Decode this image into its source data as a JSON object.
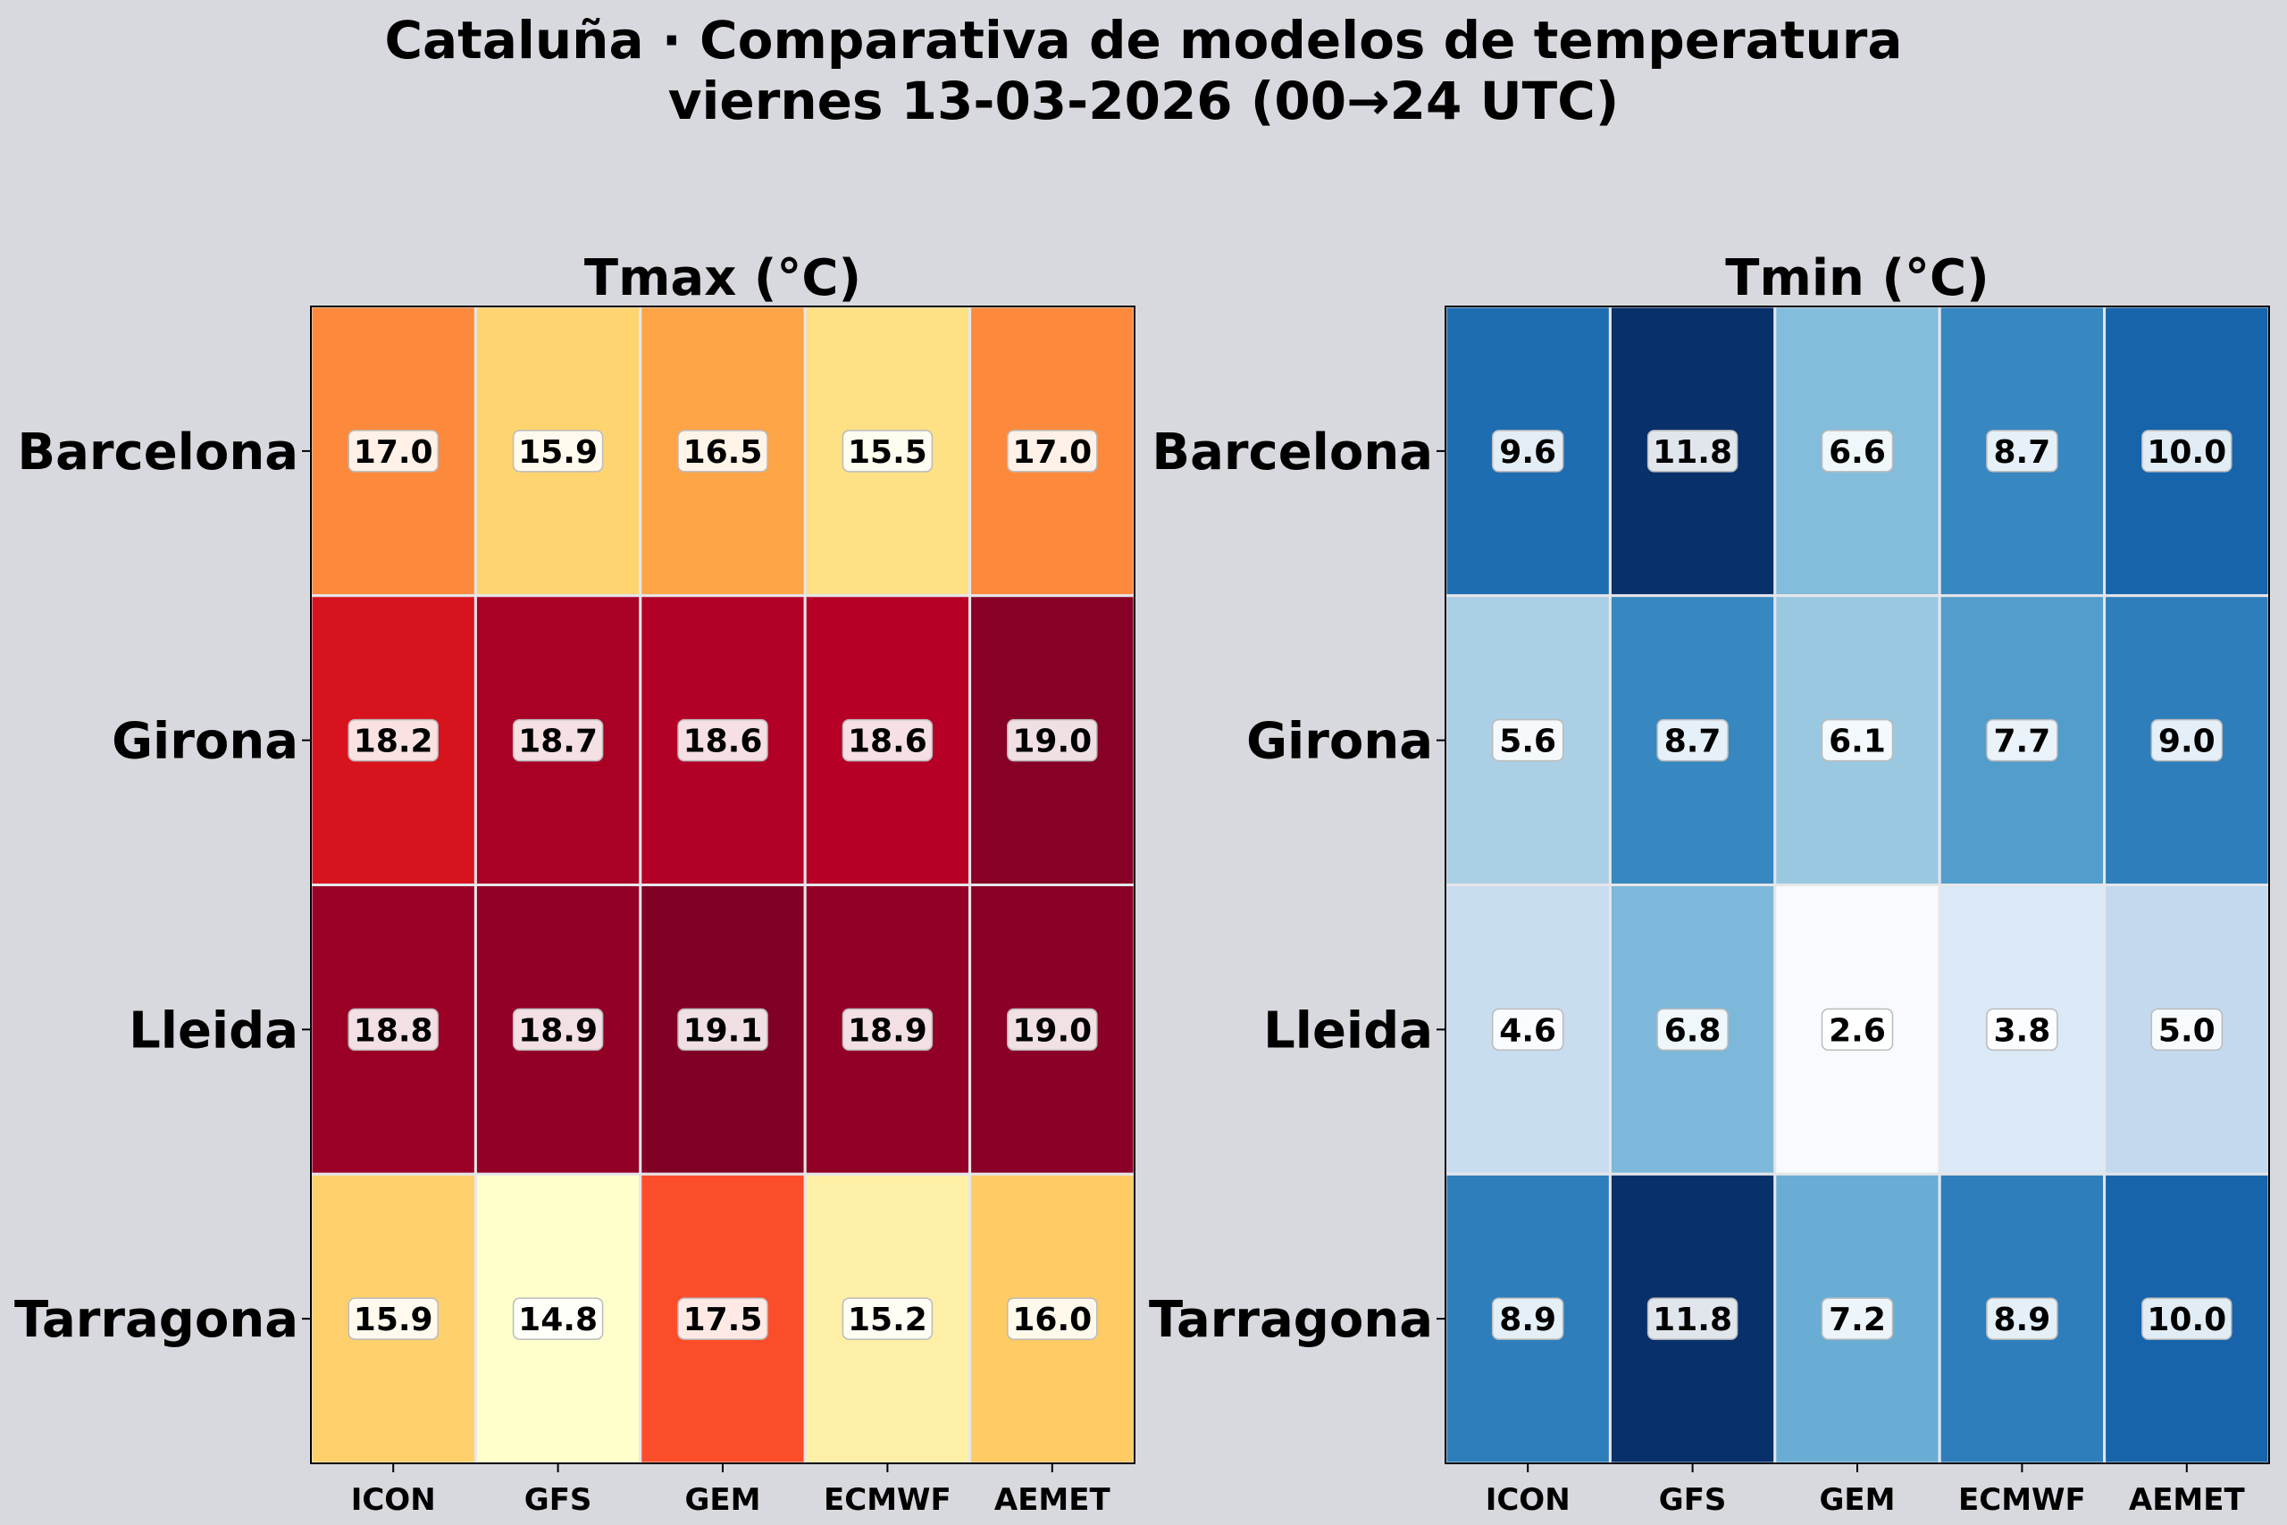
{
  "title_line1": "Cataluña · Comparativa de modelos de temperatura",
  "title_line2": "viernes 13-03-2026 (00→24 UTC)",
  "colors": {
    "background": "#d8d9de",
    "cell_border": "#e6e6ea",
    "label_box_fill": "#ffffff",
    "text": "#000000"
  },
  "chart_data": [
    {
      "type": "heatmap",
      "title": "Tmax (°C)",
      "colormap": "YlOrRd",
      "rows": [
        "Barcelona",
        "Girona",
        "Lleida",
        "Tarragona"
      ],
      "columns": [
        "ICON",
        "GFS",
        "GEM",
        "ECMWF",
        "AEMET"
      ],
      "values": [
        [
          17.0,
          15.9,
          16.5,
          15.5,
          17.0
        ],
        [
          18.2,
          18.7,
          18.6,
          18.6,
          19.0
        ],
        [
          18.8,
          18.9,
          19.1,
          18.9,
          19.0
        ],
        [
          15.9,
          14.8,
          17.5,
          15.2,
          16.0
        ]
      ],
      "value_labels": [
        [
          "17.0",
          "15.9",
          "16.5",
          "15.5",
          "17.0"
        ],
        [
          "18.2",
          "18.7",
          "18.6",
          "18.6",
          "19.0"
        ],
        [
          "18.8",
          "18.9",
          "19.1",
          "18.9",
          "19.0"
        ],
        [
          "15.9",
          "14.8",
          "17.5",
          "15.2",
          "16.0"
        ]
      ],
      "cell_colors": [
        [
          "#fd8a3c",
          "#fed471",
          "#fda447",
          "#fee085",
          "#fd8a3c"
        ],
        [
          "#d7141e",
          "#a90026",
          "#b30026",
          "#b60026",
          "#870026"
        ],
        [
          "#9a0026",
          "#920026",
          "#800026",
          "#920026",
          "#8a0026"
        ],
        [
          "#fed06b",
          "#ffffcc",
          "#fc4d2a",
          "#feefa6",
          "#fecb64"
        ]
      ]
    },
    {
      "type": "heatmap",
      "title": "Tmin (°C)",
      "colormap": "Blues",
      "rows": [
        "Barcelona",
        "Girona",
        "Lleida",
        "Tarragona"
      ],
      "columns": [
        "ICON",
        "GFS",
        "GEM",
        "ECMWF",
        "AEMET"
      ],
      "values": [
        [
          9.6,
          11.8,
          6.6,
          8.7,
          10.0
        ],
        [
          5.6,
          8.7,
          6.1,
          7.7,
          9.0
        ],
        [
          4.6,
          6.8,
          2.6,
          3.8,
          5.0
        ],
        [
          8.9,
          11.8,
          7.2,
          8.9,
          10.0
        ]
      ],
      "value_labels": [
        [
          "9.6",
          "11.8",
          "6.6",
          "8.7",
          "10.0"
        ],
        [
          "5.6",
          "8.7",
          "6.1",
          "7.7",
          "9.0"
        ],
        [
          "4.6",
          "6.8",
          "2.6",
          "3.8",
          "5.0"
        ],
        [
          "8.9",
          "11.8",
          "7.2",
          "8.9",
          "10.0"
        ]
      ],
      "cell_colors": [
        [
          "#1f6db1",
          "#08306b",
          "#84bcdb",
          "#3787c0",
          "#1764ab"
        ],
        [
          "#abcfe5",
          "#3787c0",
          "#9ac8e0",
          "#529dcc",
          "#2e7ebb"
        ],
        [
          "#c9ddf0",
          "#7db8da",
          "#f7fbff",
          "#dbe9f6",
          "#c2d9ee"
        ],
        [
          "#2e7ebb",
          "#08306b",
          "#69add5",
          "#2e7ebb",
          "#1764ab"
        ]
      ]
    }
  ]
}
